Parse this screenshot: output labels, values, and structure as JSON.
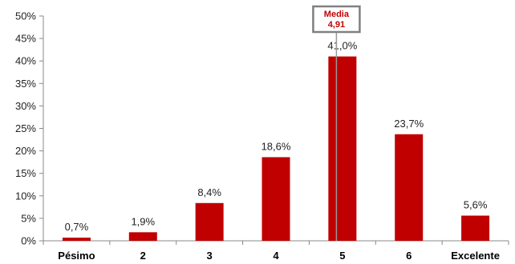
{
  "chart_data": {
    "type": "bar",
    "categories": [
      "Pésimo",
      "2",
      "3",
      "4",
      "5",
      "6",
      "Excelente"
    ],
    "values": [
      0.7,
      1.9,
      8.4,
      18.6,
      41.0,
      23.7,
      5.6
    ],
    "value_labels": [
      "0,7%",
      "1,9%",
      "8,4%",
      "18,6%",
      "41,0%",
      "23,7%",
      "5,6%"
    ],
    "ylim": [
      0,
      50
    ],
    "yticks": [
      0,
      5,
      10,
      15,
      20,
      25,
      30,
      35,
      40,
      45,
      50
    ],
    "ytick_labels": [
      "0%",
      "5%",
      "10%",
      "15%",
      "20%",
      "25%",
      "30%",
      "35%",
      "40%",
      "45%",
      "50%"
    ],
    "grid": false,
    "bar_color": "#c00000",
    "median": {
      "label": "Media",
      "value_label": "4,91",
      "category_position": 4.91,
      "line_color": "#999999",
      "text_color": "#c00000"
    }
  }
}
